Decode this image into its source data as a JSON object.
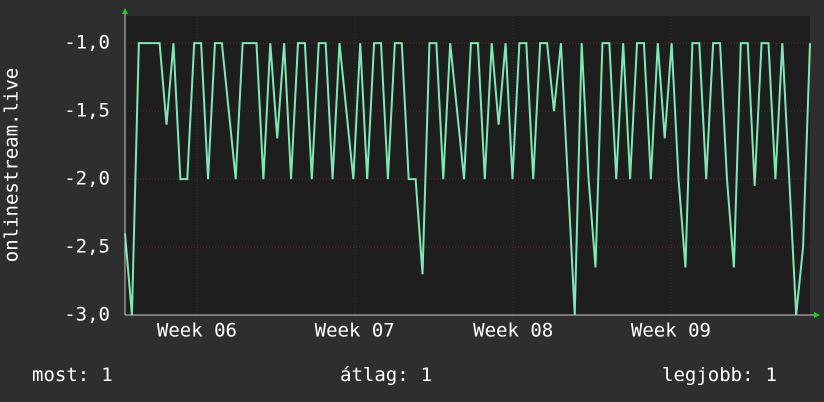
{
  "chart_data": {
    "type": "line",
    "y_label": "onlinestream.live",
    "x": [
      0,
      1,
      2,
      3,
      4,
      5,
      6,
      7,
      8,
      9,
      10,
      11,
      12,
      13,
      14,
      15,
      16,
      17,
      18,
      19,
      20,
      21,
      22,
      23,
      24,
      25,
      26,
      27,
      28,
      29,
      30,
      31,
      32,
      33,
      34,
      35,
      36,
      37,
      38,
      39,
      40,
      41,
      42,
      43,
      44,
      45,
      46,
      47,
      48,
      49,
      50,
      51,
      52,
      53,
      54,
      55,
      56,
      57,
      58,
      59,
      60,
      61,
      62,
      63,
      64,
      65,
      66,
      67,
      68,
      69,
      70,
      71,
      72,
      73,
      74,
      75,
      76,
      77,
      78,
      79,
      80,
      81,
      82,
      83,
      84,
      85,
      86,
      87,
      88,
      89,
      90,
      91,
      92,
      93,
      94,
      95,
      96,
      97,
      98,
      99
    ],
    "series": [
      {
        "name": "onlinestream.live",
        "color": "#7fe8b4",
        "values": [
          -2.4,
          -3.0,
          -1.0,
          -1.0,
          -1.0,
          -1.0,
          -1.6,
          -1.0,
          -2.0,
          -2.0,
          -1.0,
          -1.0,
          -2.0,
          -1.0,
          -1.0,
          -1.5,
          -2.0,
          -1.0,
          -1.0,
          -1.0,
          -2.0,
          -1.0,
          -1.7,
          -1.0,
          -2.0,
          -1.0,
          -1.0,
          -2.0,
          -1.0,
          -1.0,
          -2.0,
          -1.0,
          -1.5,
          -2.0,
          -1.0,
          -2.0,
          -1.0,
          -1.0,
          -2.0,
          -1.0,
          -1.0,
          -2.0,
          -2.0,
          -2.7,
          -1.0,
          -1.0,
          -2.0,
          -1.0,
          -1.5,
          -2.0,
          -1.0,
          -1.0,
          -2.0,
          -1.0,
          -1.6,
          -1.0,
          -2.0,
          -1.0,
          -1.0,
          -2.0,
          -1.0,
          -1.0,
          -1.5,
          -1.0,
          -2.0,
          -3.0,
          -1.0,
          -2.0,
          -2.65,
          -1.0,
          -1.0,
          -2.0,
          -1.0,
          -2.0,
          -1.0,
          -1.0,
          -2.0,
          -1.0,
          -1.7,
          -1.0,
          -2.0,
          -2.65,
          -1.0,
          -1.0,
          -2.0,
          -1.0,
          -1.0,
          -2.0,
          -2.65,
          -1.0,
          -1.0,
          -2.05,
          -1.0,
          -1.0,
          -2.0,
          -1.0,
          -2.0,
          -3.0,
          -2.5,
          -1.0
        ]
      }
    ],
    "xlim": [
      0,
      99
    ],
    "xticks": [
      {
        "value": 10.4,
        "label": "Week 06"
      },
      {
        "value": 33.2,
        "label": "Week 07"
      },
      {
        "value": 56.1,
        "label": "Week 08"
      },
      {
        "value": 78.9,
        "label": "Week 09"
      }
    ],
    "ylim": [
      -3.0,
      -0.8
    ],
    "yticks": [
      {
        "value": -3.0,
        "label": "-3,0"
      },
      {
        "value": -2.5,
        "label": "-2,5"
      },
      {
        "value": -2.0,
        "label": "-2,0"
      },
      {
        "value": -1.5,
        "label": "-1,5"
      },
      {
        "value": -1.0,
        "label": "-1,0"
      }
    ],
    "grid": true,
    "summary": [
      {
        "label": "most:",
        "value": 1
      },
      {
        "label": "átlag:",
        "value": 1
      },
      {
        "label": "legjobb:",
        "value": 1
      }
    ]
  }
}
